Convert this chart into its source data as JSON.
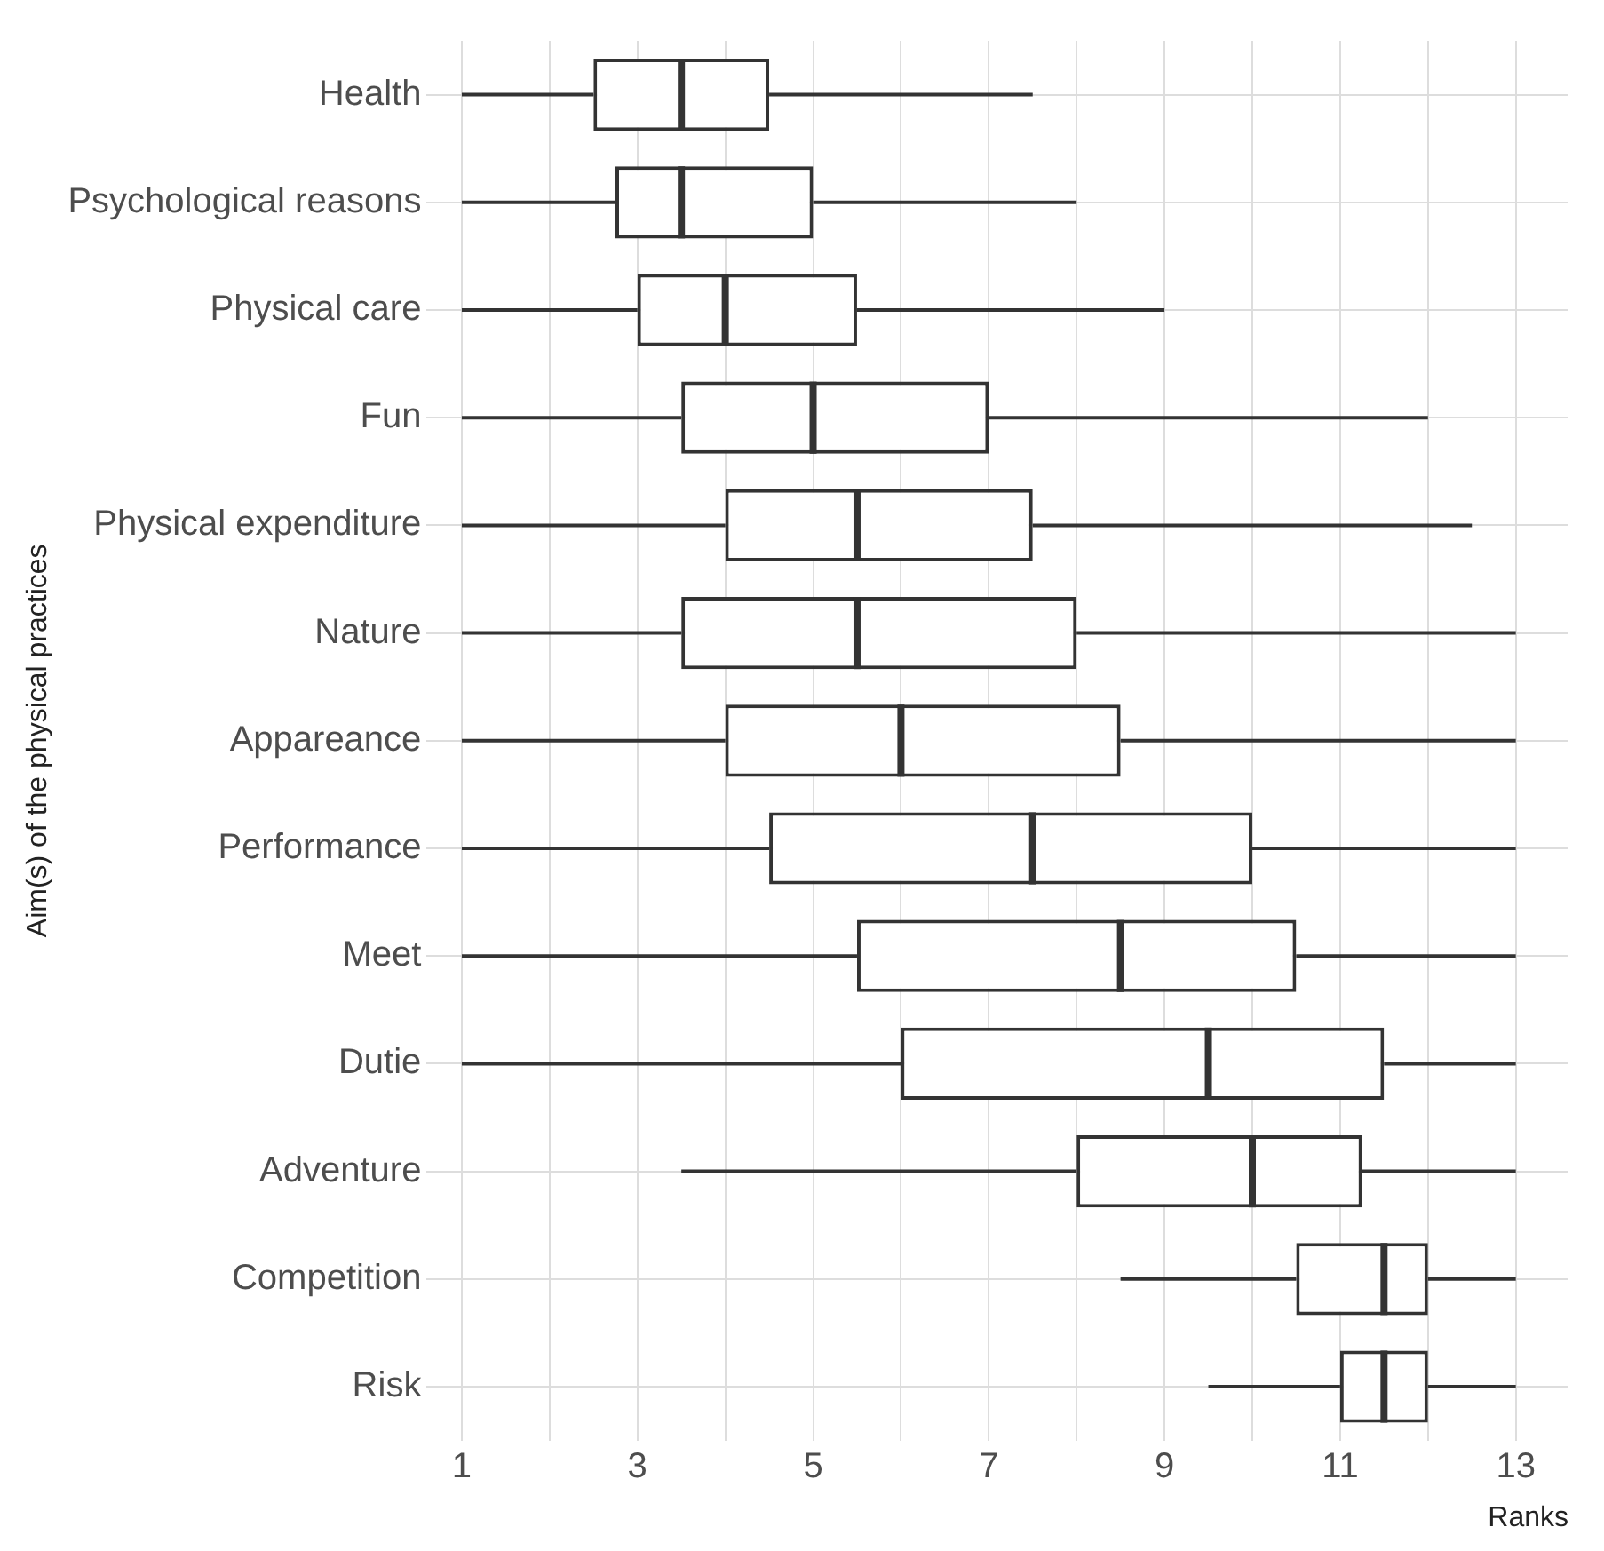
{
  "chart_data": {
    "type": "box",
    "xlabel": "Ranks",
    "ylabel": "Aim(s) of the physical practices",
    "orientation": "horizontal",
    "categories": [
      "Health",
      "Psychological reasons",
      "Physical care",
      "Fun",
      "Physical expenditure",
      "Nature",
      "Appareance",
      "Performance",
      "Meet",
      "Dutie",
      "Adventure",
      "Competition",
      "Risk"
    ],
    "boxes": [
      {
        "low": 1,
        "q1": 2.5,
        "median": 3.5,
        "q3": 4.5,
        "high": 7.5
      },
      {
        "low": 1,
        "q1": 2.75,
        "median": 3.5,
        "q3": 5,
        "high": 8
      },
      {
        "low": 1,
        "q1": 3,
        "median": 4,
        "q3": 5.5,
        "high": 9
      },
      {
        "low": 1,
        "q1": 3.5,
        "median": 5,
        "q3": 7,
        "high": 12
      },
      {
        "low": 1,
        "q1": 4,
        "median": 5.5,
        "q3": 7.5,
        "high": 12.5
      },
      {
        "low": 1,
        "q1": 3.5,
        "median": 5.5,
        "q3": 8,
        "high": 13
      },
      {
        "low": 1,
        "q1": 4,
        "median": 6,
        "q3": 8.5,
        "high": 13
      },
      {
        "low": 1,
        "q1": 4.5,
        "median": 7.5,
        "q3": 10,
        "high": 13
      },
      {
        "low": 1,
        "q1": 5.5,
        "median": 8.5,
        "q3": 10.5,
        "high": 13
      },
      {
        "low": 1,
        "q1": 6,
        "median": 9.5,
        "q3": 11.5,
        "high": 13
      },
      {
        "low": 3.5,
        "q1": 8,
        "median": 10,
        "q3": 11.25,
        "high": 13
      },
      {
        "low": 8.5,
        "q1": 10.5,
        "median": 11.5,
        "q3": 12,
        "high": 13
      },
      {
        "low": 9.5,
        "q1": 11,
        "median": 11.5,
        "q3": 12,
        "high": 13
      }
    ],
    "color": "#333333",
    "xlim": [
      0.6,
      13.6
    ],
    "xticks": [
      1,
      {
        "value": 2,
        "label": null
      },
      3,
      {
        "value": 4,
        "label": null
      },
      5,
      {
        "value": 6,
        "label": null
      },
      7,
      {
        "value": 8,
        "label": null
      },
      9,
      {
        "value": 10,
        "label": null
      },
      11,
      {
        "value": 12,
        "label": null
      },
      13
    ],
    "grid": true,
    "legend": false
  }
}
